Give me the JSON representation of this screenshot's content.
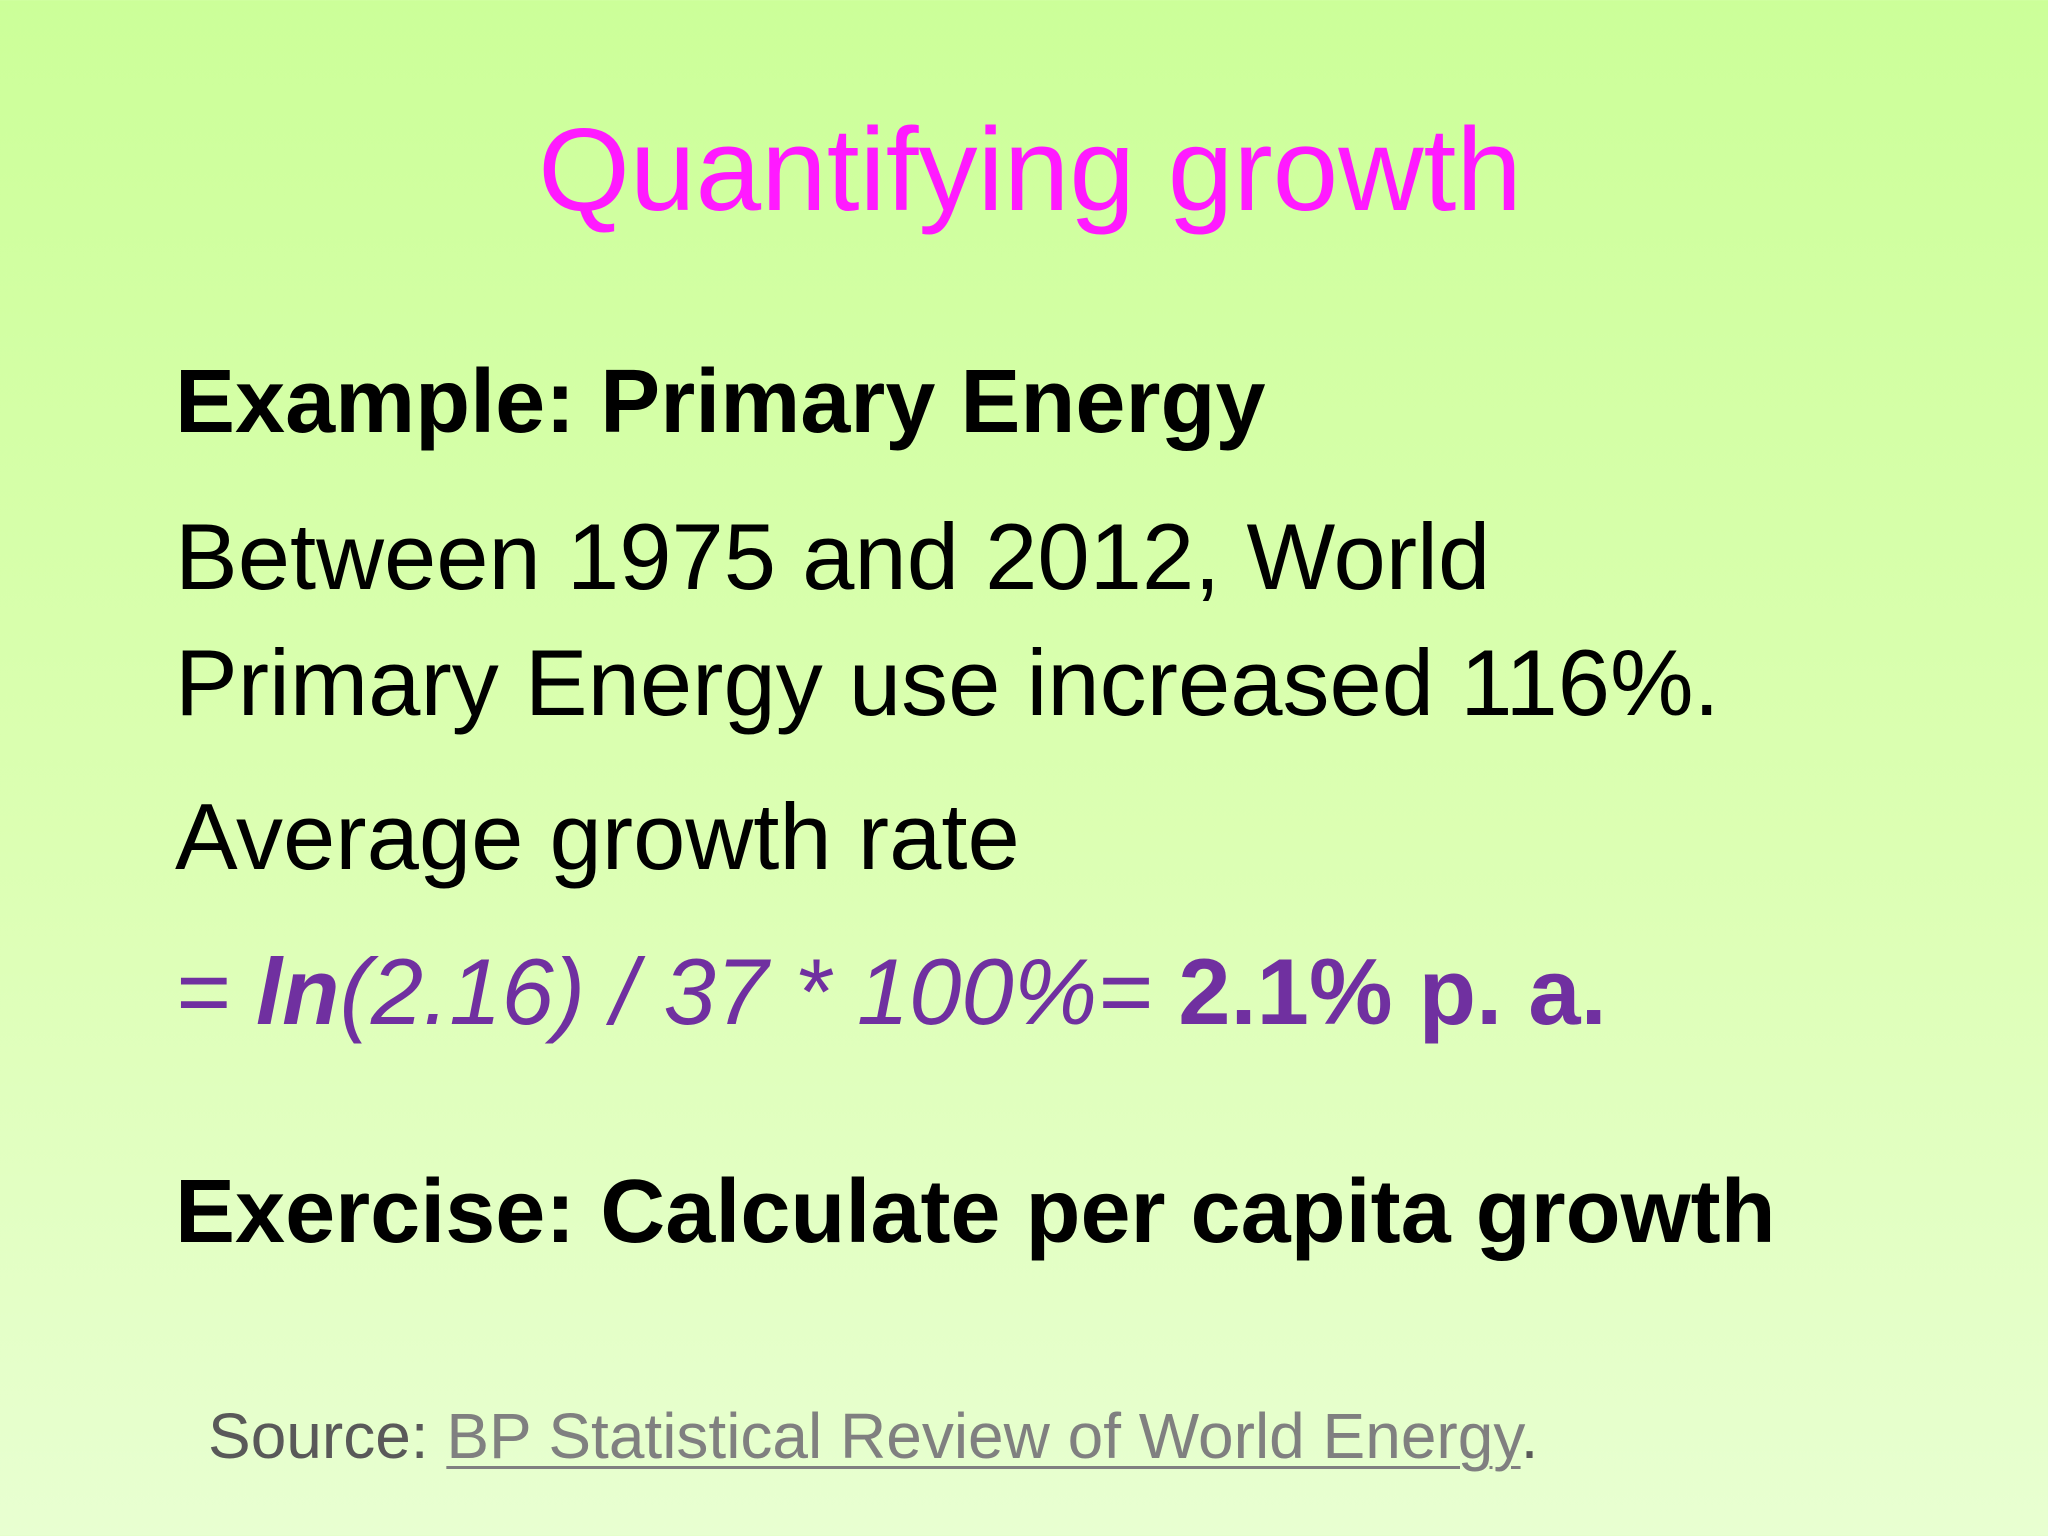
{
  "slide": {
    "title": "Quantifying growth",
    "example_heading": "Example: Primary Energy",
    "statement_line1": "Between 1975 and 2012, World",
    "statement_line2": "Primary Energy use increased 116%.",
    "growth_label": "Average growth rate",
    "formula": {
      "prefix": "= ",
      "function": "ln",
      "expression": "(2.16) / 37 * 100%",
      "equals": "= ",
      "result": "2.1% p. a."
    },
    "exercise_heading": "Exercise: Calculate per capita growth",
    "source": {
      "label": "Source: ",
      "link_text": "BP Statistical Review of World Energy",
      "suffix": "."
    }
  },
  "colors": {
    "title": "#ff1aff",
    "formula": "#7030a0",
    "background_top": "#ccff99",
    "background_bottom": "#e8ffd1"
  }
}
